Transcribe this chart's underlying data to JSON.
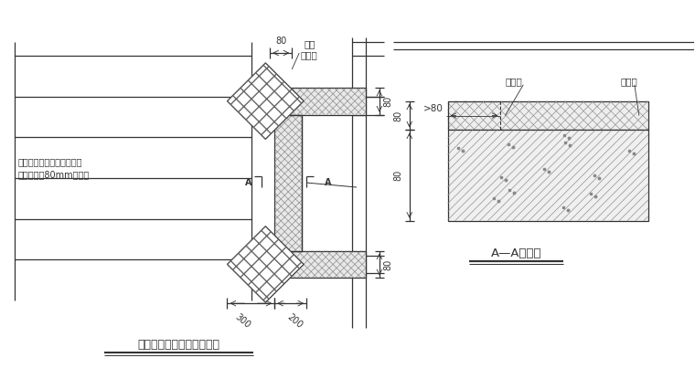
{
  "bg_color": "#ffffff",
  "line_color": "#333333",
  "title_left": "门窗洞口附加网格布示意图",
  "title_right": "A—A剖面图",
  "label_fj": "附加",
  "label_wgb_top": "网格布",
  "label_wgb2": "网格布",
  "label_jsb": "挤塑板",
  "label_wall1": "与墙体接触一面用粘结砂浆",
  "label_wall2": "预粘不小于80mm网格布",
  "dim_80_top": "80",
  "dim_80_right1": "80",
  "dim_80_right2": "80",
  "dim_gt80": ">80",
  "dim_300": "300",
  "dim_200": "200"
}
